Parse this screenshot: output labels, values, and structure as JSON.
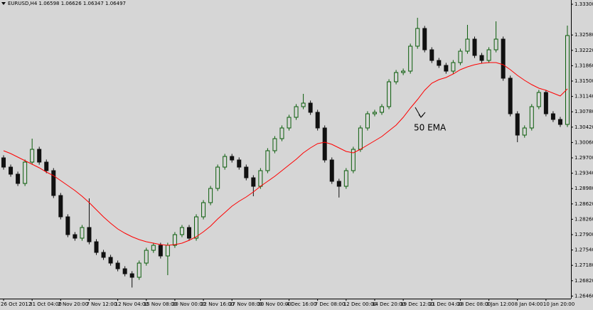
{
  "chart_data": {
    "type": "candlestick",
    "title": "EURUSD,H4  1.06598 1.06626 1.06347 1.06497",
    "categories": [
      "26 Oct 2012",
      null,
      null,
      null,
      "31 Oct 04:00",
      null,
      null,
      null,
      "2 Nov 20:00",
      null,
      null,
      null,
      "7 Nov 12:00",
      null,
      null,
      null,
      "12 Nov 04:00",
      null,
      null,
      null,
      "15 Nov 08:00",
      null,
      null,
      null,
      "20 Nov 00:00",
      null,
      null,
      null,
      "22 Nov 16:00",
      null,
      null,
      null,
      "27 Nov 08:00",
      null,
      null,
      null,
      "30 Nov 00:00",
      null,
      null,
      null,
      "4 Dec 16:00",
      null,
      null,
      null,
      "7 Dec 08:00",
      null,
      null,
      null,
      "12 Dec 00:00",
      null,
      null,
      null,
      "14 Dec 20:00",
      null,
      null,
      null,
      "19 Dec 12:00",
      null,
      null,
      null,
      "21 Dec 04:00",
      null,
      null,
      null,
      "28 Dec 08:00",
      null,
      null,
      null,
      "3 Jan 12:00",
      null,
      null,
      null,
      "8 Jan 04:00",
      null,
      null,
      null,
      "10 Jan 20:00",
      null,
      null,
      null
    ],
    "open": [
      1.297,
      1.29483,
      1.29317,
      1.291,
      1.296,
      1.299,
      1.296,
      1.294,
      1.28817,
      1.28317,
      1.279,
      1.27817,
      1.28067,
      1.27733,
      1.27483,
      1.27367,
      1.27233,
      1.271,
      1.26983,
      1.269,
      1.27233,
      1.27533,
      1.2765,
      1.274,
      1.2765,
      1.279,
      1.28067,
      1.27817,
      1.28317,
      1.2865,
      1.28983,
      1.29483,
      1.29733,
      1.2965,
      1.29483,
      1.29233,
      1.29033,
      1.294,
      1.29867,
      1.3015,
      1.304,
      1.3065,
      1.309,
      1.30983,
      1.30767,
      1.304,
      1.2965,
      1.2915,
      1.29033,
      1.294,
      1.299,
      1.304,
      1.30733,
      1.30767,
      1.309,
      1.31483,
      1.317,
      1.31733,
      1.32317,
      1.32733,
      1.32233,
      1.31983,
      1.31867,
      1.31733,
      1.31933,
      1.322,
      1.32483,
      1.321,
      1.31983,
      1.32233,
      1.32483,
      1.31567,
      1.30733,
      1.30233,
      1.304,
      1.309,
      1.31233,
      1.30733,
      1.306,
      1.30483
    ],
    "high": [
      1.2976,
      1.29543,
      1.29377,
      1.2966,
      1.3015,
      1.2996,
      1.2966,
      1.2946,
      1.28877,
      1.28377,
      1.2796,
      1.28127,
      1.2875,
      1.27793,
      1.27543,
      1.27427,
      1.27293,
      1.2716,
      1.27043,
      1.27293,
      1.27593,
      1.2771,
      1.2771,
      1.2771,
      1.2796,
      1.28127,
      1.28127,
      1.28377,
      1.2871,
      1.29043,
      1.29543,
      1.29793,
      1.29793,
      1.2971,
      1.29543,
      1.29293,
      1.2946,
      1.29927,
      1.3021,
      1.3046,
      1.3071,
      1.3096,
      1.312,
      1.31043,
      1.30827,
      1.3046,
      1.2971,
      1.2921,
      1.2946,
      1.2996,
      1.3046,
      1.30793,
      1.30827,
      1.3096,
      1.31543,
      1.3176,
      1.31793,
      1.32377,
      1.32983,
      1.32793,
      1.32293,
      1.32043,
      1.31927,
      1.31993,
      1.3226,
      1.32817,
      1.32543,
      1.3216,
      1.32293,
      1.329,
      1.32543,
      1.31627,
      1.30793,
      1.3046,
      1.3096,
      1.31293,
      1.31293,
      1.30793,
      1.3066,
      1.328
    ],
    "low": [
      1.29423,
      1.29257,
      1.2904,
      1.2904,
      1.2954,
      1.2954,
      1.2934,
      1.28757,
      1.28257,
      1.2784,
      1.27757,
      1.27757,
      1.27673,
      1.27423,
      1.27307,
      1.27173,
      1.2704,
      1.26923,
      1.2666,
      1.2684,
      1.27173,
      1.27473,
      1.2734,
      1.2695,
      1.2759,
      1.2784,
      1.27757,
      1.27757,
      1.28257,
      1.2859,
      1.28923,
      1.29423,
      1.2959,
      1.29423,
      1.29173,
      1.288,
      1.28973,
      1.2934,
      1.29807,
      1.3009,
      1.3034,
      1.3059,
      1.3084,
      1.30707,
      1.3034,
      1.2959,
      1.2909,
      1.2877,
      1.28973,
      1.2934,
      1.2984,
      1.3034,
      1.30673,
      1.30707,
      1.3084,
      1.31423,
      1.3164,
      1.31673,
      1.32257,
      1.32173,
      1.31923,
      1.31807,
      1.31673,
      1.31673,
      1.31873,
      1.3214,
      1.3204,
      1.31923,
      1.31923,
      1.32173,
      1.31507,
      1.30673,
      1.30067,
      1.30173,
      1.3034,
      1.3084,
      1.30673,
      1.3054,
      1.30423,
      1.30423
    ],
    "close": [
      1.29483,
      1.29317,
      1.291,
      1.296,
      1.299,
      1.296,
      1.294,
      1.28817,
      1.28317,
      1.279,
      1.27817,
      1.28067,
      1.27733,
      1.27483,
      1.27367,
      1.27233,
      1.271,
      1.26983,
      1.269,
      1.27233,
      1.27533,
      1.2765,
      1.274,
      1.2765,
      1.279,
      1.28067,
      1.27817,
      1.28317,
      1.2865,
      1.28983,
      1.29483,
      1.29733,
      1.2965,
      1.29483,
      1.29233,
      1.29033,
      1.294,
      1.29867,
      1.3015,
      1.304,
      1.3065,
      1.309,
      1.30983,
      1.30767,
      1.304,
      1.2965,
      1.2915,
      1.29033,
      1.294,
      1.299,
      1.304,
      1.30733,
      1.30767,
      1.309,
      1.31483,
      1.317,
      1.31733,
      1.32317,
      1.32733,
      1.32233,
      1.31983,
      1.31867,
      1.31733,
      1.31933,
      1.322,
      1.32483,
      1.321,
      1.31983,
      1.32233,
      1.32483,
      1.31567,
      1.30733,
      1.30233,
      1.304,
      1.309,
      1.31233,
      1.30733,
      1.306,
      1.30483,
      1.32567
    ],
    "up_color": "#0b5d0b",
    "down_color": "#111111",
    "ema": {
      "color": "#ff0000",
      "values": [
        1.29867,
        1.298,
        1.29717,
        1.29633,
        1.2955,
        1.29467,
        1.29367,
        1.29283,
        1.29167,
        1.2905,
        1.28933,
        1.288,
        1.2865,
        1.28483,
        1.28317,
        1.28167,
        1.28033,
        1.27933,
        1.2785,
        1.27783,
        1.27733,
        1.277,
        1.27667,
        1.2765,
        1.27667,
        1.277,
        1.27767,
        1.2785,
        1.27967,
        1.281,
        1.28267,
        1.28417,
        1.28567,
        1.28683,
        1.28783,
        1.289,
        1.29033,
        1.2915,
        1.29267,
        1.294,
        1.29533,
        1.29667,
        1.29817,
        1.29933,
        1.30033,
        1.30067,
        1.30017,
        1.29933,
        1.2985,
        1.29817,
        1.299,
        1.3,
        1.301,
        1.302,
        1.30333,
        1.30467,
        1.3065,
        1.30867,
        1.31067,
        1.31283,
        1.3145,
        1.31533,
        1.31583,
        1.31667,
        1.31767,
        1.31833,
        1.31883,
        1.31917,
        1.31933,
        1.31933,
        1.31883,
        1.31767,
        1.31633,
        1.31517,
        1.31417,
        1.31333,
        1.31283,
        1.31217,
        1.3115,
        1.31317
      ]
    },
    "annotation": "50 EMA",
    "ylim": [
      1.264,
      1.334
    ],
    "yticks": [
      {
        "value": 1.333,
        "label": "1.33300"
      },
      {
        "value": 1.3258,
        "label": "1.32580"
      },
      {
        "value": 1.3222,
        "label": "1.32220"
      },
      {
        "value": 1.3186,
        "label": "1.31860"
      },
      {
        "value": 1.315,
        "label": "1.31500"
      },
      {
        "value": 1.3114,
        "label": "1.31140"
      },
      {
        "value": 1.3078,
        "label": "1.30780"
      },
      {
        "value": 1.3042,
        "label": "1.30420"
      },
      {
        "value": 1.3006,
        "label": "1.30060"
      },
      {
        "value": 1.297,
        "label": "1.29700"
      },
      {
        "value": 1.2934,
        "label": "1.29340"
      },
      {
        "value": 1.2898,
        "label": "1.28980"
      },
      {
        "value": 1.2862,
        "label": "1.28620"
      },
      {
        "value": 1.2826,
        "label": "1.28260"
      },
      {
        "value": 1.279,
        "label": "1.27900"
      },
      {
        "value": 1.2754,
        "label": "1.27540"
      },
      {
        "value": 1.2718,
        "label": "1.27180"
      },
      {
        "value": 1.2682,
        "label": "1.26820"
      },
      {
        "value": 1.2646,
        "label": "1.26460"
      }
    ]
  }
}
